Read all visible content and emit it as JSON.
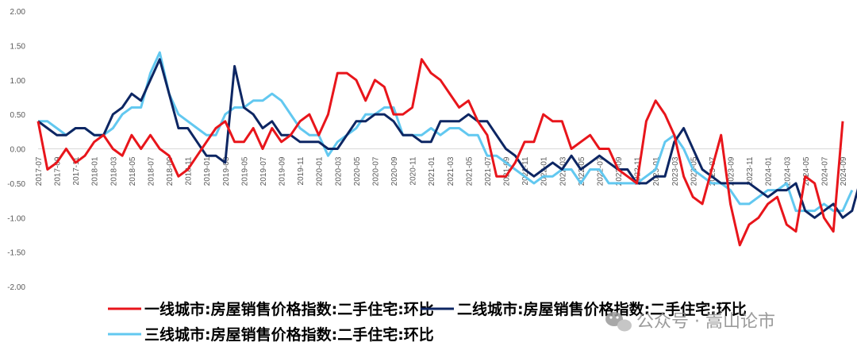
{
  "chart_data": {
    "type": "line",
    "ylim": [
      -2.0,
      2.0
    ],
    "y_ticks": [
      "2.00",
      "1.50",
      "1.00",
      "0.50",
      "0.00",
      "-0.50",
      "-1.00",
      "-1.50",
      "-2.00"
    ],
    "y_tick_values": [
      2.0,
      1.5,
      1.0,
      0.5,
      0.0,
      -0.5,
      -1.0,
      -1.5,
      -2.0
    ],
    "grid": false,
    "legend_position": "bottom",
    "x_start": "2017-07",
    "x_tick_labels": [
      "2017-07",
      "2017-09",
      "2017-11",
      "2018-01",
      "2018-03",
      "2018-05",
      "2018-07",
      "2018-09",
      "2018-11",
      "2019-01",
      "2019-03",
      "2019-05",
      "2019-07",
      "2019-09",
      "2019-11",
      "2020-01",
      "2020-03",
      "2020-05",
      "2020-07",
      "2020-09",
      "2020-11",
      "2021-01",
      "2021-03",
      "2021-05",
      "2021-07",
      "2021-09",
      "2021-11",
      "2022-01",
      "2022-03",
      "2022-05",
      "2022-07",
      "2022-09",
      "2022-11",
      "2023-01",
      "2023-03",
      "2023-05",
      "2023-07",
      "2023-09",
      "2023-11",
      "2024-01",
      "2024-03",
      "2024-05",
      "2024-07",
      "2024-09"
    ],
    "series": [
      {
        "name": "一线城市:房屋销售价格指数:二手住宅:环比",
        "color": "#e8151b",
        "values": [
          0.4,
          -0.3,
          -0.2,
          0.0,
          -0.2,
          -0.1,
          0.1,
          0.2,
          0.0,
          -0.1,
          0.2,
          0.0,
          0.2,
          0.0,
          -0.1,
          -0.4,
          -0.3,
          -0.1,
          0.1,
          0.3,
          0.4,
          0.1,
          0.1,
          0.3,
          0.0,
          0.3,
          0.1,
          0.2,
          0.4,
          0.5,
          0.2,
          0.5,
          1.1,
          1.1,
          1.0,
          0.7,
          1.0,
          0.9,
          0.5,
          0.5,
          0.6,
          1.3,
          1.1,
          1.0,
          0.8,
          0.6,
          0.7,
          0.4,
          0.2,
          -0.4,
          -0.4,
          -0.2,
          0.1,
          0.1,
          0.5,
          0.4,
          0.4,
          0.0,
          0.1,
          0.2,
          0.0,
          0.0,
          -0.3,
          -0.4,
          -0.5,
          0.4,
          0.7,
          0.5,
          0.2,
          -0.4,
          -0.7,
          -0.8,
          -0.3,
          0.2,
          -0.8,
          -1.4,
          -1.1,
          -1.0,
          -0.8,
          -0.7,
          -1.1,
          -1.2,
          -0.4,
          -0.5,
          -1.0,
          -1.2,
          0.4
        ]
      },
      {
        "name": "二线城市:房屋销售价格指数:二手住宅:环比",
        "color": "#0d2663",
        "values": [
          0.4,
          0.3,
          0.2,
          0.2,
          0.3,
          0.3,
          0.2,
          0.2,
          0.5,
          0.6,
          0.8,
          0.7,
          1.0,
          1.3,
          0.8,
          0.3,
          0.3,
          0.1,
          -0.1,
          -0.1,
          -0.2,
          1.2,
          0.6,
          0.5,
          0.3,
          0.4,
          0.2,
          0.2,
          0.1,
          0.1,
          0.1,
          0.0,
          0.0,
          0.2,
          0.4,
          0.4,
          0.5,
          0.5,
          0.4,
          0.2,
          0.2,
          0.1,
          0.1,
          0.4,
          0.4,
          0.4,
          0.5,
          0.4,
          0.4,
          0.2,
          0.0,
          -0.1,
          -0.3,
          -0.4,
          -0.3,
          -0.2,
          -0.3,
          -0.1,
          -0.3,
          -0.2,
          -0.1,
          -0.2,
          -0.3,
          -0.3,
          -0.5,
          -0.5,
          -0.4,
          -0.4,
          0.1,
          0.3,
          0.0,
          -0.3,
          -0.4,
          -0.5,
          -0.5,
          -0.5,
          -0.5,
          -0.6,
          -0.7,
          -0.6,
          -0.6,
          -0.5,
          -0.9,
          -1.0,
          -0.9,
          -0.8,
          -1.0,
          -0.9,
          -0.4
        ]
      },
      {
        "name": "三线城市:房屋销售价格指数:二手住宅:环比",
        "color": "#62c8f0",
        "values": [
          0.4,
          0.4,
          0.3,
          0.2,
          0.3,
          0.3,
          0.2,
          0.2,
          0.3,
          0.5,
          0.6,
          0.6,
          1.1,
          1.4,
          0.8,
          0.5,
          0.4,
          0.3,
          0.2,
          0.2,
          0.5,
          0.6,
          0.6,
          0.7,
          0.7,
          0.8,
          0.7,
          0.5,
          0.3,
          0.2,
          0.2,
          -0.1,
          0.1,
          0.2,
          0.3,
          0.5,
          0.5,
          0.6,
          0.6,
          0.2,
          0.2,
          0.2,
          0.3,
          0.2,
          0.3,
          0.3,
          0.2,
          0.2,
          -0.1,
          -0.1,
          -0.2,
          -0.3,
          -0.4,
          -0.5,
          -0.4,
          -0.4,
          -0.3,
          -0.3,
          -0.5,
          -0.3,
          -0.3,
          -0.5,
          -0.5,
          -0.5,
          -0.5,
          -0.4,
          -0.3,
          0.1,
          0.2,
          0.0,
          -0.3,
          -0.4,
          -0.5,
          -0.5,
          -0.6,
          -0.8,
          -0.8,
          -0.7,
          -0.6,
          -0.6,
          -0.5,
          -0.9,
          -0.9,
          -0.9,
          -0.8,
          -0.9,
          -0.9,
          -0.6
        ]
      }
    ]
  },
  "watermark": {
    "icon": "wechat-icon",
    "text": "公众号 · 嵩山论市"
  }
}
